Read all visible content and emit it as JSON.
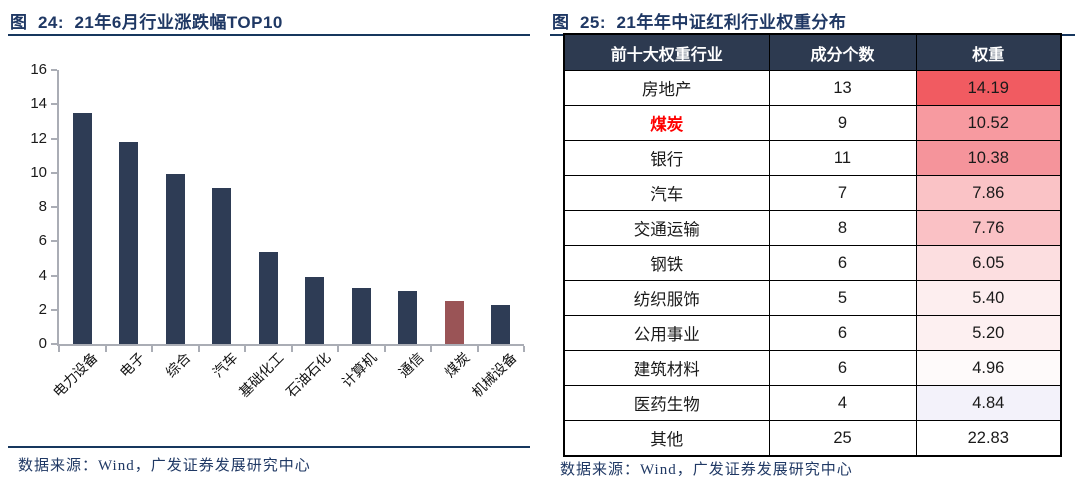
{
  "chart_data": [
    {
      "type": "bar",
      "title": "21年6月行业涨跌幅TOP10",
      "categories": [
        "电力设备",
        "电子",
        "综合",
        "汽车",
        "基础化工",
        "石油石化",
        "计算机",
        "通信",
        "煤炭",
        "机械设备"
      ],
      "values": [
        13.5,
        11.8,
        9.9,
        9.1,
        5.4,
        3.9,
        3.3,
        3.1,
        2.5,
        2.3
      ],
      "xlabel": "",
      "ylabel": "",
      "ylim": [
        0,
        16
      ],
      "ytick_step": 2,
      "grid": false,
      "legend": "none",
      "highlight_index": 8,
      "highlight_category": "煤炭"
    },
    {
      "type": "table",
      "title": "21年年中证红利行业权重分布",
      "columns": [
        "前十大权重行业",
        "成分个数",
        "权重"
      ],
      "rows": [
        {
          "industry": "房地产",
          "count": "13",
          "weight": "14.19",
          "weight_bg": "#f15b61",
          "highlight": false
        },
        {
          "industry": "煤炭",
          "count": "9",
          "weight": "10.52",
          "weight_bg": "#f79aa0",
          "highlight": true
        },
        {
          "industry": "银行",
          "count": "11",
          "weight": "10.38",
          "weight_bg": "#f5949b",
          "highlight": false
        },
        {
          "industry": "汽车",
          "count": "7",
          "weight": "7.86",
          "weight_bg": "#fac3c6",
          "highlight": false
        },
        {
          "industry": "交通运输",
          "count": "8",
          "weight": "7.76",
          "weight_bg": "#fac1c5",
          "highlight": false
        },
        {
          "industry": "钢铁",
          "count": "6",
          "weight": "6.05",
          "weight_bg": "#fcdee0",
          "highlight": false
        },
        {
          "industry": "纺织服饰",
          "count": "5",
          "weight": "5.40",
          "weight_bg": "#fdeeef",
          "highlight": false
        },
        {
          "industry": "公用事业",
          "count": "6",
          "weight": "5.20",
          "weight_bg": "#fdf0f1",
          "highlight": false
        },
        {
          "industry": "建筑材料",
          "count": "6",
          "weight": "4.96",
          "weight_bg": "#fefafa",
          "highlight": false
        },
        {
          "industry": "医药生物",
          "count": "4",
          "weight": "4.84",
          "weight_bg": "#f3f2fa",
          "highlight": false
        },
        {
          "industry": "其他",
          "count": "25",
          "weight": "22.83",
          "weight_bg": "#ffffff",
          "highlight": false
        }
      ]
    }
  ],
  "left": {
    "caption": "图  24:  21年6月行业涨跌幅TOP10",
    "source": "数据来源：Wind，广发证券发展研究中心"
  },
  "right": {
    "caption": "图  25:  21年年中证红利行业权重分布",
    "source": "数据来源：Wind，广发证券发展研究中心"
  },
  "colors": {
    "caption_navy": "#1f3864",
    "rule_navy": "#17375e",
    "bar_navy": "#2e3c55",
    "bar_red": "#9a5456",
    "axis_gray": "#aaadb5",
    "table_header_bg": "#2d3a50",
    "table_header_text": "#ffffff",
    "highlight_red": "#fe0000"
  }
}
